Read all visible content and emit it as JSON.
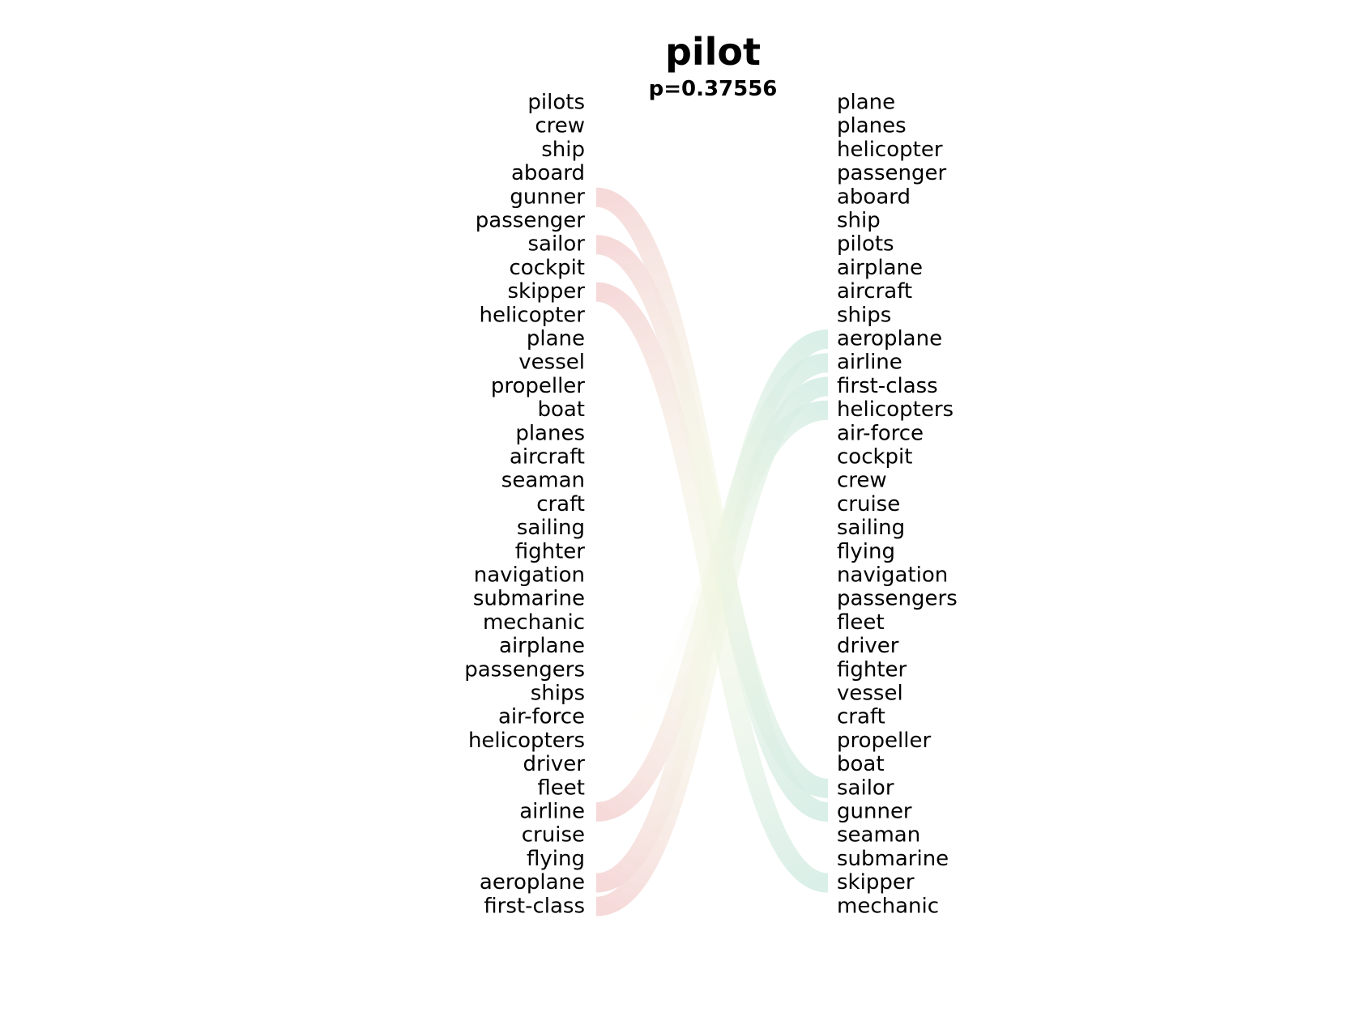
{
  "title": "pilot",
  "subtitle": "p=0.37556",
  "left_words": [
    "pilots",
    "crew",
    "ship",
    "aboard",
    "gunner",
    "passenger",
    "sailor",
    "cockpit",
    "skipper",
    "helicopter",
    "plane",
    "vessel",
    "propeller",
    "boat",
    "planes",
    "aircraft",
    "seaman",
    "craft",
    "sailing",
    "fighter",
    "navigation",
    "submarine",
    "mechanic",
    "airplane",
    "passengers",
    "ships",
    "air-force",
    "helicopters",
    "driver",
    "fleet",
    "airline",
    "cruise",
    "flying",
    "aeroplane",
    "first-class"
  ],
  "right_words": [
    "plane",
    "planes",
    "helicopter",
    "passenger",
    "aboard",
    "ship",
    "pilots",
    "airplane",
    "aircraft",
    "ships",
    "aeroplane",
    "airline",
    "first-class",
    "helicopters",
    "air-force",
    "cockpit",
    "crew",
    "cruise",
    "sailing",
    "flying",
    "navigation",
    "passengers",
    "fleet",
    "driver",
    "fighter",
    "vessel",
    "craft",
    "propeller",
    "boat",
    "sailor",
    "gunner",
    "seaman",
    "submarine",
    "skipper",
    "mechanic"
  ],
  "left_highlights": [
    "gunner",
    "sailor",
    "skipper",
    "airline",
    "aeroplane",
    "first-class"
  ],
  "right_highlights": [
    "aeroplane",
    "airline",
    "first-class",
    "helicopters",
    "sailor",
    "gunner",
    "skipper"
  ],
  "colors": {
    "left_link": "#f5d5d5",
    "right_link": "#d5ede5",
    "mid_link": "#f2f6e2",
    "text": "#000000"
  }
}
